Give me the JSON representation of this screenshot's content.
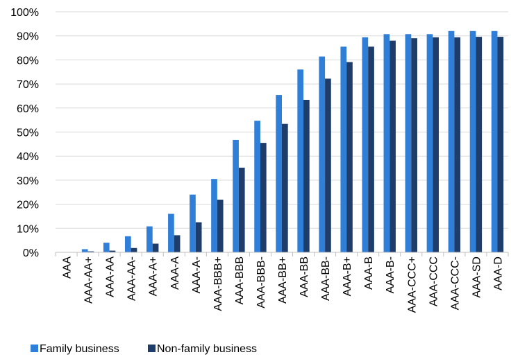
{
  "chart_data": {
    "type": "bar",
    "categories": [
      "AAA",
      "AAA-AA+",
      "AAA-AA",
      "AAA-AA-",
      "AAA-A+",
      "AAA-A",
      "AAA-A-",
      "AAA-BBB+",
      "AAA-BBB",
      "AAA-BBB-",
      "AAA-BB+",
      "AAA-BB",
      "AAA-BB-",
      "AAA-B+",
      "AAA-B",
      "AAA-B-",
      "AAA-CCC+",
      "AAA-CCC",
      "AAA-CCC-",
      "AAA-SD",
      "AAA-D"
    ],
    "series": [
      {
        "name": "Family business",
        "color": "#2f7ed8",
        "values": [
          0.1,
          1.3,
          4.0,
          6.7,
          10.8,
          16.0,
          24.0,
          30.5,
          46.7,
          54.7,
          65.4,
          76.0,
          81.4,
          85.5,
          89.4,
          90.7,
          90.7,
          90.7,
          92.0,
          92.0,
          92.0
        ]
      },
      {
        "name": "Non-family business",
        "color": "#1f3d6a",
        "values": [
          0.1,
          0.4,
          0.7,
          1.8,
          3.6,
          7.1,
          12.5,
          21.9,
          35.2,
          45.5,
          53.4,
          63.4,
          72.2,
          79.1,
          85.5,
          88.0,
          89.0,
          89.4,
          89.4,
          89.6,
          89.6
        ]
      }
    ],
    "y_ticks": [
      "0%",
      "10%",
      "20%",
      "30%",
      "40%",
      "50%",
      "60%",
      "70%",
      "80%",
      "90%",
      "100%"
    ],
    "ylim": [
      0,
      100
    ],
    "grid": true,
    "legend": "bottom-left",
    "title": "",
    "xlabel": "",
    "ylabel": ""
  }
}
